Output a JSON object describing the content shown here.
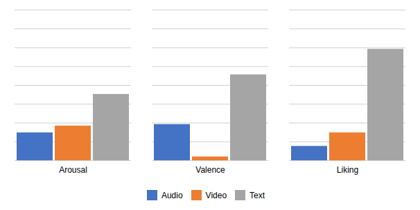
{
  "chart_data": {
    "type": "bar",
    "categories": [
      "Arousal",
      "Valence",
      "Liking"
    ],
    "series": [
      {
        "name": "Audio",
        "color": "#4472C4",
        "values": [
          0.185,
          0.24,
          0.095
        ]
      },
      {
        "name": "Video",
        "color": "#ED7D31",
        "values": [
          0.23,
          0.025,
          0.185
        ]
      },
      {
        "name": "Text",
        "color": "#A5A5A5",
        "values": [
          0.44,
          0.57,
          0.74
        ]
      }
    ],
    "ylim": [
      0,
      1.0
    ],
    "yticks": [
      0,
      0.125,
      0.25,
      0.375,
      0.5,
      0.625,
      0.75,
      0.875,
      1.0
    ],
    "grid": true,
    "legend": "bottom",
    "tick_labels": "x"
  }
}
